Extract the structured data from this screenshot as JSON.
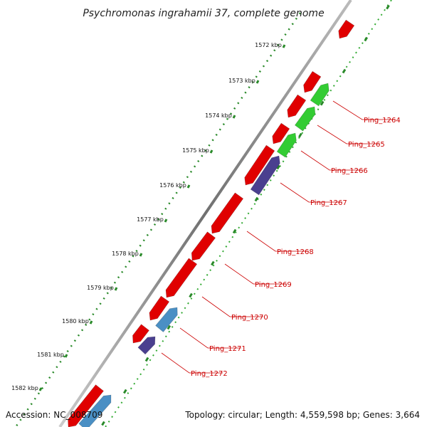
{
  "title": "Psychromonas ingrahamii 37, complete genome",
  "footer": {
    "accession": "Accession: NC_008709",
    "topology": "Topology: circular; Length: 4,559,598 bp; Genes: 3,664"
  },
  "ticks": [
    "1572 kbp",
    "1573 kbp",
    "1574 kbp",
    "1575 kbp",
    "1576 kbp",
    "1577 kbp",
    "1578 kbp",
    "1579 kbp",
    "1580 kbp",
    "1581 kbp",
    "1582 kbp"
  ],
  "gene_labels": [
    "Ping_1264",
    "Ping_1265",
    "Ping_1266",
    "Ping_1267",
    "Ping_1268",
    "Ping_1269",
    "Ping_1270",
    "Ping_1271",
    "Ping_1272"
  ],
  "colors": {
    "red": "#e00000",
    "green": "#33cc33",
    "purple": "#4a3f8f",
    "blue": "#4a8fc4",
    "backbone": "#888888",
    "dots_dark": "#2a8a2a",
    "dots_light": "#33aa33",
    "label": "#cc0000"
  }
}
